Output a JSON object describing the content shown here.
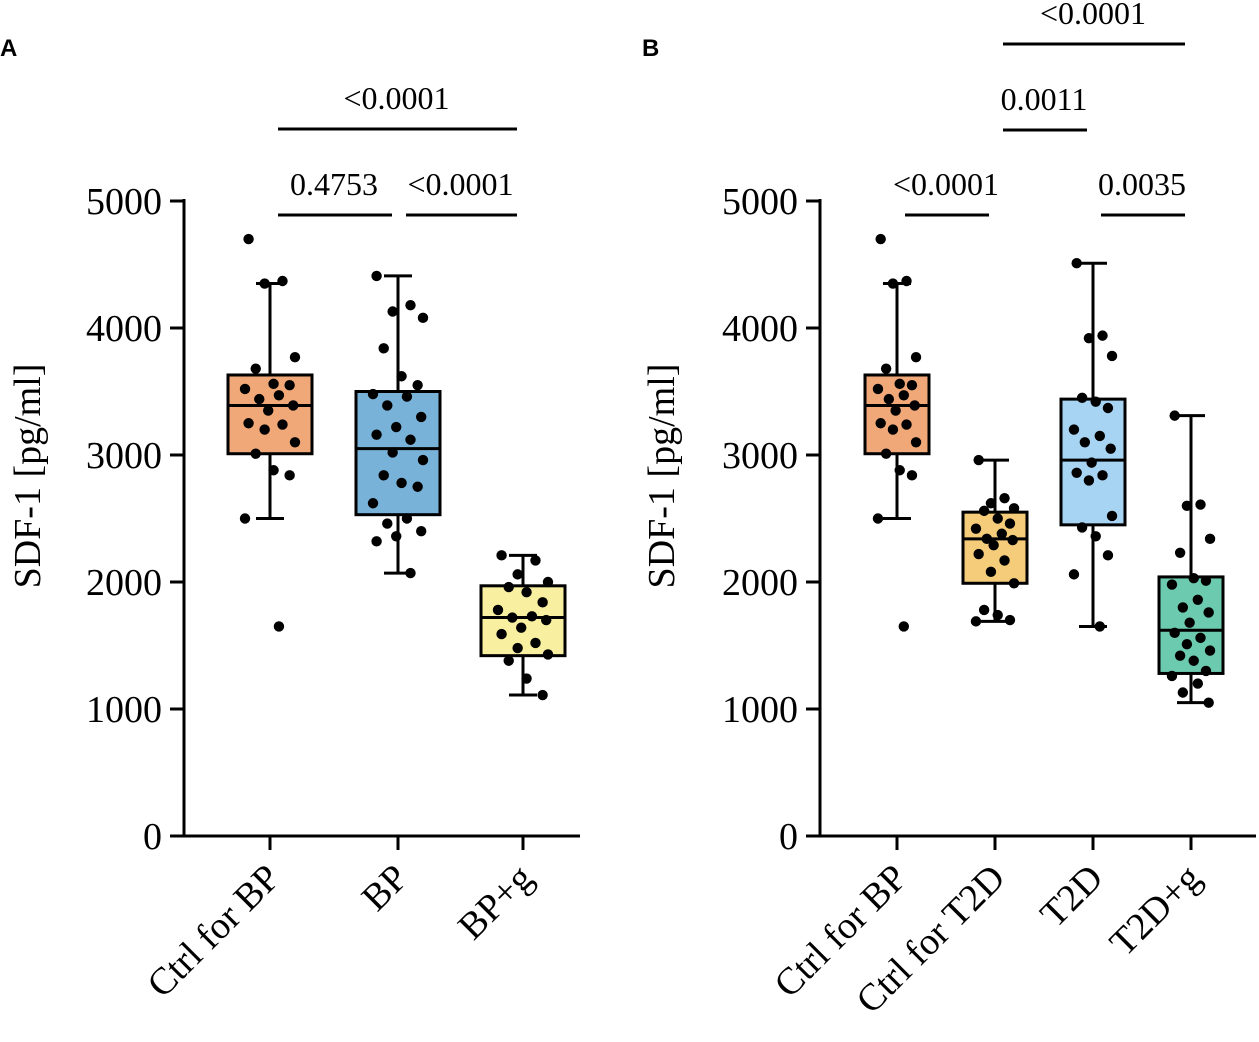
{
  "chart_data": [
    {
      "panel": "A",
      "type": "box",
      "ylabel": "SDF-1 [pg/ml]",
      "ylim": [
        0,
        5000
      ],
      "yticks": [
        0,
        1000,
        2000,
        3000,
        4000,
        5000
      ],
      "categories": [
        "Ctrl for BP",
        "BP",
        "BP+g"
      ],
      "colors": [
        "#f0a878",
        "#78b2d8",
        "#f8f0a0"
      ],
      "boxes": [
        {
          "name": "Ctrl for BP",
          "min": 2500,
          "q1": 3010,
          "median": 3390,
          "q3": 3630,
          "max": 4350,
          "points": [
            4700,
            4370,
            4350,
            3770,
            3680,
            3560,
            3550,
            3520,
            3470,
            3440,
            3390,
            3350,
            3250,
            3240,
            3200,
            3100,
            3010,
            2880,
            2840,
            2500,
            1650
          ]
        },
        {
          "name": "BP",
          "min": 2070,
          "q1": 2530,
          "median": 3050,
          "q3": 3500,
          "max": 4410,
          "points": [
            4410,
            4180,
            4130,
            4080,
            3840,
            3620,
            3550,
            3480,
            3460,
            3390,
            3300,
            3220,
            3160,
            3120,
            3020,
            2960,
            2840,
            2780,
            2750,
            2620,
            2500,
            2460,
            2400,
            2360,
            2320,
            2070
          ]
        },
        {
          "name": "BP+g",
          "min": 1110,
          "q1": 1420,
          "median": 1720,
          "q3": 1970,
          "max": 2210,
          "points": [
            2210,
            2170,
            2060,
            2000,
            1960,
            1920,
            1840,
            1780,
            1730,
            1720,
            1700,
            1640,
            1590,
            1520,
            1480,
            1430,
            1380,
            1240,
            1110
          ]
        }
      ],
      "comparisons": [
        {
          "from": 0,
          "to": 1,
          "label": "0.4753"
        },
        {
          "from": 1,
          "to": 2,
          "label": "<0.0001"
        },
        {
          "from": 0,
          "to": 2,
          "label": "<0.0001"
        }
      ]
    },
    {
      "panel": "B",
      "type": "box",
      "ylabel": "SDF-1 [pg/ml]",
      "ylim": [
        0,
        5000
      ],
      "yticks": [
        0,
        1000,
        2000,
        3000,
        4000,
        5000
      ],
      "categories": [
        "Ctrl for BP",
        "Ctrl for T2D",
        "T2D",
        "T2D+g"
      ],
      "colors": [
        "#f0a878",
        "#f5cc7a",
        "#a8d4f4",
        "#6ccaae"
      ],
      "boxes": [
        {
          "name": "Ctrl for BP",
          "min": 2500,
          "q1": 3010,
          "median": 3390,
          "q3": 3630,
          "max": 4350,
          "points": [
            4700,
            4370,
            4350,
            3770,
            3680,
            3560,
            3550,
            3520,
            3470,
            3440,
            3390,
            3350,
            3250,
            3240,
            3200,
            3100,
            3010,
            2880,
            2840,
            2500,
            1650
          ]
        },
        {
          "name": "Ctrl for T2D",
          "min": 1690,
          "q1": 1990,
          "median": 2340,
          "q3": 2550,
          "max": 2960,
          "points": [
            2960,
            2660,
            2620,
            2580,
            2560,
            2500,
            2460,
            2420,
            2380,
            2340,
            2330,
            2290,
            2220,
            2170,
            2080,
            1990,
            1780,
            1740,
            1700,
            1690
          ]
        },
        {
          "name": "T2D",
          "min": 1650,
          "q1": 2450,
          "median": 2960,
          "q3": 3440,
          "max": 4510,
          "points": [
            4510,
            3940,
            3920,
            3780,
            3450,
            3420,
            3370,
            3200,
            3150,
            3100,
            3050,
            2940,
            2860,
            2840,
            2800,
            2520,
            2430,
            2360,
            2210,
            2060,
            1650
          ]
        },
        {
          "name": "T2D+g",
          "min": 1050,
          "q1": 1280,
          "median": 1620,
          "q3": 2040,
          "max": 3310,
          "points": [
            3310,
            2610,
            2600,
            2340,
            2230,
            2030,
            2010,
            1980,
            1860,
            1800,
            1760,
            1680,
            1600,
            1560,
            1510,
            1460,
            1420,
            1380,
            1300,
            1260,
            1200,
            1130,
            1050
          ]
        }
      ],
      "comparisons": [
        {
          "from": 0,
          "to": 1,
          "label": "<0.0001"
        },
        {
          "from": 2,
          "to": 3,
          "label": "0.0035"
        },
        {
          "from": 1,
          "to": 2,
          "label": "0.0011"
        },
        {
          "from": 1,
          "to": 3,
          "label": "<0.0001"
        }
      ]
    }
  ]
}
